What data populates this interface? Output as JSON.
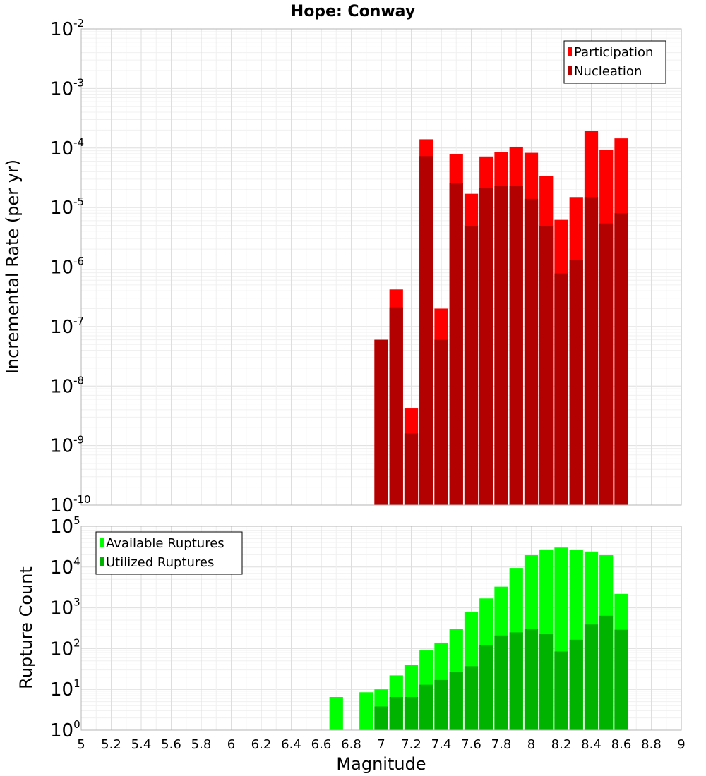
{
  "chart_data": [
    {
      "type": "bar",
      "title": "Hope: Conway",
      "ylabel": "Incremental Rate (per yr)",
      "y_scale": "log",
      "ylim": [
        1e-10,
        0.01
      ],
      "xlim": [
        5,
        9
      ],
      "grid": true,
      "legend_position": "top-right",
      "legend": [
        "Participation",
        "Nucleation"
      ],
      "x": [
        7.0,
        7.1,
        7.2,
        7.3,
        7.4,
        7.5,
        7.6,
        7.7,
        7.8,
        7.9,
        8.0,
        8.1,
        8.2,
        8.3,
        8.4,
        8.5,
        8.6
      ],
      "series": [
        {
          "name": "Participation",
          "color": "#ff0000",
          "values": [
            6e-08,
            4.2e-07,
            4.2e-09,
            0.00014,
            2e-07,
            7.8e-05,
            1.7e-05,
            7.2e-05,
            8.5e-05,
            0.000105,
            8.3e-05,
            3.4e-05,
            6.2e-06,
            1.5e-05,
            0.000195,
            9.2e-05,
            0.000145
          ]
        },
        {
          "name": "Nucleation",
          "color": "#b30000",
          "values": [
            6e-08,
            2.1e-07,
            1.6e-09,
            7.3e-05,
            6e-08,
            2.6e-05,
            4.9e-06,
            2.1e-05,
            2.3e-05,
            2.3e-05,
            1.4e-05,
            4.9e-06,
            7.8e-07,
            1.3e-06,
            1.5e-05,
            5.4e-06,
            8e-06
          ]
        }
      ]
    },
    {
      "type": "bar",
      "ylabel": "Rupture Count",
      "xlabel": "Magnitude",
      "y_scale": "log",
      "ylim": [
        1,
        100000
      ],
      "xlim": [
        5,
        9
      ],
      "grid": true,
      "legend_position": "top-left",
      "legend": [
        "Available Ruptures",
        "Utilized Ruptures"
      ],
      "x": [
        6.7,
        6.9,
        7.0,
        7.1,
        7.2,
        7.3,
        7.4,
        7.5,
        7.6,
        7.7,
        7.8,
        7.9,
        8.0,
        8.1,
        8.2,
        8.3,
        8.4,
        8.5,
        8.6
      ],
      "series": [
        {
          "name": "Available Ruptures",
          "color": "#00ff00",
          "values": [
            6.5,
            8.5,
            10,
            22,
            40,
            90,
            140,
            300,
            780,
            1700,
            3300,
            9500,
            19500,
            27000,
            30000,
            26000,
            24000,
            19500,
            2200
          ]
        },
        {
          "name": "Utilized Ruptures",
          "color": "#00b300",
          "values": [
            0,
            0,
            3.8,
            6.5,
            6.5,
            13,
            17,
            27,
            37,
            120,
            210,
            250,
            310,
            225,
            85,
            165,
            390,
            640,
            290
          ]
        }
      ]
    }
  ],
  "x_ticks": [
    "5",
    "5.2",
    "5.4",
    "5.6",
    "5.8",
    "6",
    "6.2",
    "6.4",
    "6.6",
    "6.8",
    "7",
    "7.2",
    "7.4",
    "7.6",
    "7.8",
    "8",
    "8.2",
    "8.4",
    "8.6",
    "8.8",
    "9"
  ],
  "rate_y_exponents": [
    "-2",
    "-3",
    "-4",
    "-5",
    "-6",
    "-7",
    "-8",
    "-9",
    "-10"
  ],
  "count_y_exponents": [
    "5",
    "4",
    "3",
    "2",
    "1",
    "0"
  ],
  "y_tick_base": "10",
  "colors": {
    "plot_border": "#b4b4b4",
    "grid_major": "#dedede",
    "grid_minor": "#f0f0f0",
    "background": "#ffffff"
  }
}
